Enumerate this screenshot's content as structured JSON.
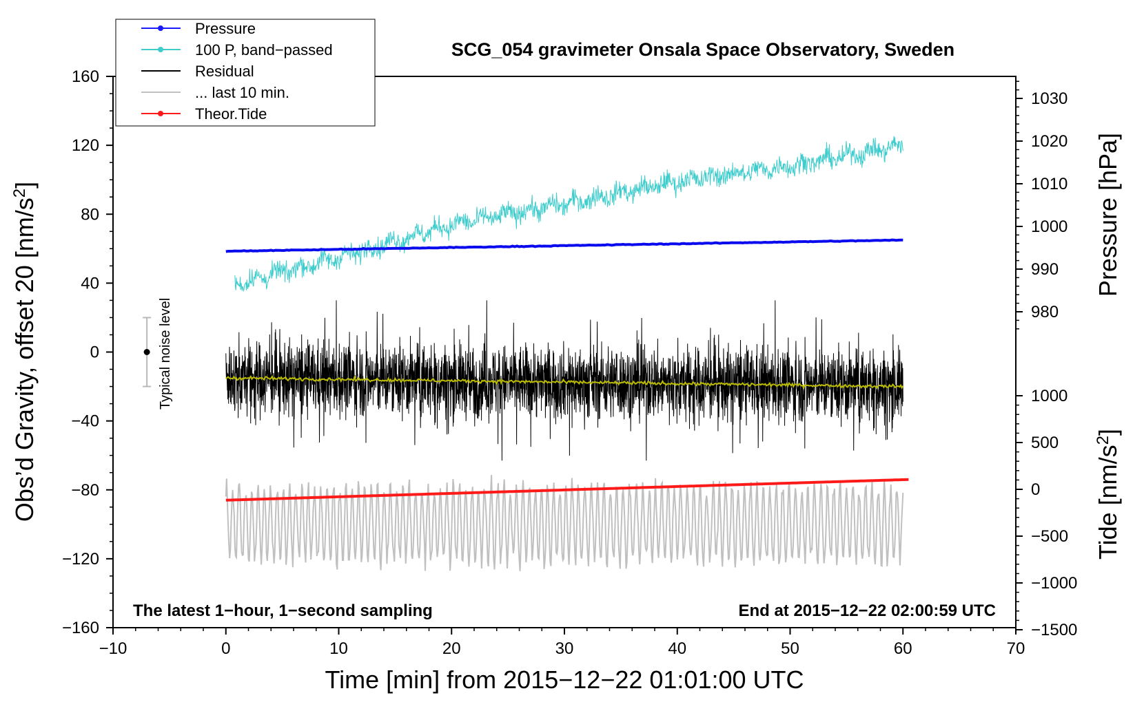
{
  "chart_data": {
    "type": "line",
    "title": "SCG_054 gravimeter Onsala Space Observatory, Sweden",
    "xlabel": "Time [min] from 2015−12−22 01:01:00 UTC",
    "ylabel_left_prefix": "Obs’d Gravity, offset 20 [nm/s",
    "ylabel_right_top": "Pressure [hPa]",
    "ylabel_right_bottom_prefix": "Tide [nm/s",
    "unit_superscript": "2",
    "unit_suffix": "]",
    "xlim": [
      -10,
      70
    ],
    "ylim": [
      -160,
      160
    ],
    "x_ticks": [
      "−10",
      "0",
      "10",
      "20",
      "30",
      "40",
      "50",
      "60",
      "70"
    ],
    "y_ticks": [
      "160",
      "120",
      "80",
      "40",
      "0",
      "−40",
      "−80",
      "−120",
      "−160"
    ],
    "pressure_axis": {
      "ticks": [
        "1030",
        "1020",
        "1010",
        "1000",
        "990",
        "980"
      ],
      "values": [
        1030,
        1020,
        1010,
        1000,
        990,
        980
      ]
    },
    "tide_axis": {
      "ticks": [
        "1000",
        "500",
        "0",
        "−500",
        "−1000",
        "−1500"
      ],
      "values": [
        1000,
        500,
        0,
        -500,
        -1000,
        -1500
      ]
    },
    "legend": [
      {
        "label": "Pressure",
        "color": "#1a1aff",
        "marker": true
      },
      {
        "label": "100 P, band−passed",
        "color": "#3ecccc",
        "marker": true
      },
      {
        "label": "Residual",
        "color": "#000000",
        "marker": false
      },
      {
        "label": "... last 10 min.",
        "color": "#c0c0c0",
        "marker": false
      },
      {
        "label": "Theor.Tide",
        "color": "#ff1a1a",
        "marker": true
      }
    ],
    "legend_position": "top-left",
    "noise_level": {
      "label": "Typical noise level",
      "x": -7,
      "center": 0,
      "low": -20,
      "high": 20
    },
    "annotation_left": "The latest 1−hour, 1−second sampling",
    "annotation_right": "End at 2015−12−22 02:00:59 UTC",
    "series": [
      {
        "name": "Pressure",
        "color": "#0a0aee",
        "x": [
          0,
          60
        ],
        "values": [
          58.5,
          65
        ]
      },
      {
        "name": "100 P, band−passed",
        "color": "#3ecccc",
        "x": [
          0,
          10,
          20,
          30,
          40,
          50,
          60
        ],
        "values": [
          38,
          55,
          74,
          86,
          99,
          108,
          120
        ],
        "noise": 7
      },
      {
        "name": "Residual",
        "color": "#000000",
        "x": [
          0,
          60
        ],
        "values": [
          -15,
          -20
        ],
        "noise": 15
      },
      {
        "name": "Residual smoothed",
        "color": "#bbbb00",
        "x": [
          0,
          60
        ],
        "values": [
          -15,
          -20
        ]
      },
      {
        "name": "... last 10 min.",
        "color": "#c0c0c0",
        "x": [
          0,
          60
        ],
        "values": [
          -100,
          -100
        ],
        "amplitude": 22
      },
      {
        "name": "Theor.Tide",
        "color": "#ff1a1a",
        "x": [
          0,
          60.5
        ],
        "values": [
          -86,
          -74
        ]
      }
    ]
  }
}
